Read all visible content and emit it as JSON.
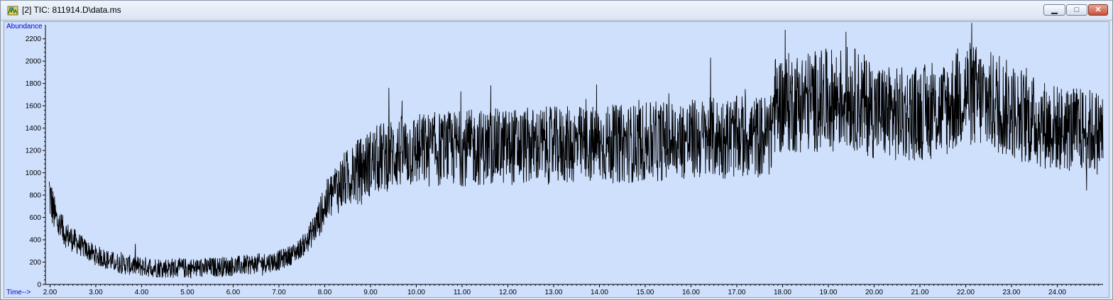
{
  "window": {
    "title": "[2] TIC: 811914.D\\data.ms",
    "icon": "chromatogram-app-icon",
    "controls": {
      "minimize_icon": "minimize-icon",
      "maximize_icon": "maximize-icon",
      "close_icon": "close-icon",
      "minimize_glyph": "▁",
      "maximize_glyph": "□",
      "close_glyph": "✕"
    }
  },
  "colors": {
    "plot_background": "#cfe0fd",
    "trace": "#000000",
    "label_accent": "#0000cc"
  },
  "chart_data": {
    "type": "line",
    "title": "",
    "ylabel": "Abundance",
    "xlabel": "Time-->",
    "xlim": [
      1.9,
      25.0
    ],
    "ylim": [
      0,
      2300
    ],
    "x_ticks": [
      2,
      3,
      4,
      5,
      6,
      7,
      8,
      9,
      10,
      11,
      12,
      13,
      14,
      15,
      16,
      17,
      18,
      19,
      20,
      21,
      22,
      23,
      24
    ],
    "x_tick_labels": [
      "2.00",
      "3.00",
      "4.00",
      "5.00",
      "6.00",
      "7.00",
      "8.00",
      "9.00",
      "10.00",
      "11.00",
      "12.00",
      "13.00",
      "14.00",
      "15.00",
      "16.00",
      "17.00",
      "18.00",
      "19.00",
      "20.00",
      "21.00",
      "22.00",
      "23.00",
      "24.00"
    ],
    "y_ticks": [
      0,
      200,
      400,
      600,
      800,
      1000,
      1200,
      1400,
      1600,
      1800,
      2000,
      2200
    ],
    "y_tick_labels": [
      "0",
      "200",
      "400",
      "600",
      "800",
      "1000",
      "1200",
      "1400",
      "1600",
      "1800",
      "2000",
      "2200"
    ],
    "grid": false,
    "series": [
      {
        "name": "",
        "x": [
          1.9,
          2.0,
          2.1,
          2.2,
          2.4,
          2.6,
          2.8,
          3.0,
          3.2,
          3.4,
          3.6,
          3.8,
          4.0,
          4.2,
          4.4,
          4.6,
          4.8,
          5.0,
          5.2,
          5.4,
          5.6,
          5.8,
          6.0,
          6.2,
          6.4,
          6.6,
          6.8,
          7.0,
          7.2,
          7.4,
          7.6,
          7.8,
          8.0,
          8.2,
          8.4,
          8.6,
          8.8,
          9.0,
          9.2,
          9.4,
          9.6,
          9.8,
          10.0,
          10.5,
          11.0,
          11.5,
          12.0,
          12.5,
          13.0,
          13.5,
          14.0,
          14.5,
          15.0,
          15.5,
          16.0,
          16.5,
          17.0,
          17.5,
          17.75,
          17.8,
          18.0,
          18.5,
          19.0,
          19.5,
          20.0,
          20.5,
          21.0,
          21.5,
          22.0,
          22.5,
          23.0,
          23.5,
          24.0,
          24.5,
          25.0
        ],
        "y": [
          1180,
          780,
          620,
          520,
          430,
          370,
          310,
          260,
          230,
          200,
          180,
          170,
          160,
          155,
          150,
          148,
          146,
          145,
          147,
          150,
          155,
          160,
          165,
          170,
          180,
          190,
          200,
          215,
          250,
          300,
          380,
          520,
          700,
          840,
          920,
          980,
          1040,
          1090,
          1130,
          1160,
          1180,
          1190,
          1200,
          1210,
          1220,
          1230,
          1235,
          1240,
          1245,
          1250,
          1255,
          1260,
          1270,
          1290,
          1300,
          1310,
          1320,
          1325,
          1330,
          1600,
          1620,
          1640,
          1650,
          1680,
          1560,
          1520,
          1540,
          1560,
          1720,
          1640,
          1560,
          1460,
          1400,
          1380,
          1360
        ]
      }
    ]
  }
}
